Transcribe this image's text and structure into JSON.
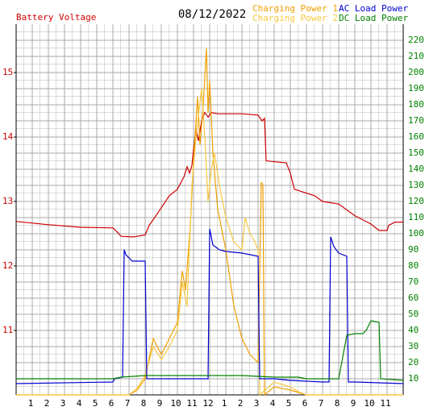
{
  "chart_data": {
    "type": "line",
    "title": "08/12/2022",
    "xlim": [
      0,
      24
    ],
    "xticks": [
      1,
      2,
      3,
      4,
      5,
      6,
      7,
      8,
      9,
      10,
      11,
      12,
      {
        "value": 13,
        "label": "1"
      },
      {
        "value": 14,
        "label": "2"
      },
      {
        "value": 15,
        "label": "3"
      },
      {
        "value": 16,
        "label": "4"
      },
      {
        "value": 17,
        "label": "5"
      },
      {
        "value": 18,
        "label": "6"
      },
      {
        "value": 19,
        "label": "7"
      },
      {
        "value": 20,
        "label": "8"
      },
      {
        "value": 21,
        "label": "9"
      },
      {
        "value": 22,
        "label": "10"
      },
      {
        "value": 23,
        "label": "11"
      }
    ],
    "ylim": [
      10,
      15.75
    ],
    "yticks": [
      11,
      12,
      13,
      14,
      15
    ],
    "ytick_color": "#d00000",
    "y2lim": [
      0,
      230
    ],
    "y2ticks": [
      10,
      20,
      30,
      40,
      50,
      60,
      70,
      80,
      90,
      100,
      110,
      120,
      130,
      140,
      150,
      160,
      170,
      180,
      190,
      200,
      210,
      220
    ],
    "y2tick_color": "#008000",
    "grid": true,
    "series": [
      {
        "name": "Battery Voltage",
        "color": "#d00000",
        "x": [
          0,
          2,
          4,
          6,
          6.25,
          6.5,
          7.25,
          8,
          8.25,
          8.75,
          9.5,
          10,
          10.4,
          10.6,
          10.75,
          10.9,
          11,
          11.15,
          11.3,
          11.5,
          11.7,
          11.9,
          12.1,
          12.5,
          14,
          15,
          15.25,
          15.4,
          15.5,
          16.75,
          17,
          17.25,
          18.5,
          19,
          20,
          21,
          22,
          22.5,
          23,
          23.1,
          23.5,
          24
        ],
        "values": [
          12.69,
          12.64,
          12.6,
          12.59,
          12.53,
          12.46,
          12.45,
          12.48,
          12.63,
          12.81,
          13.09,
          13.19,
          13.38,
          13.54,
          13.44,
          13.56,
          13.81,
          14.13,
          13.94,
          14.25,
          14.38,
          14.31,
          14.38,
          14.36,
          14.36,
          14.34,
          14.25,
          14.29,
          13.63,
          13.6,
          13.44,
          13.19,
          13.09,
          13.0,
          12.96,
          12.78,
          12.65,
          12.55,
          12.55,
          12.63,
          12.68,
          12.68
        ]
      },
      {
        "name": "Charging Power 1",
        "color": "#f0a000",
        "axis": "y2",
        "x": [
          0,
          7,
          7.5,
          8,
          8.5,
          9,
          9.5,
          10,
          10.3,
          10.5,
          10.8,
          11,
          11.25,
          11.4,
          11.6,
          11.8,
          11.9,
          12,
          12.2,
          12.5,
          13,
          13.5,
          14,
          14.5,
          15,
          15.2,
          15.3,
          15.4,
          16,
          17,
          18,
          24
        ],
        "values": [
          0,
          0,
          3,
          10,
          35,
          25,
          35,
          45,
          77,
          65,
          105,
          145,
          185,
          155,
          180,
          215,
          175,
          195,
          150,
          115,
          90,
          55,
          35,
          25,
          20,
          132,
          130,
          0,
          5,
          3,
          0,
          0
        ]
      },
      {
        "name": "Charging Power 2",
        "color": "#f8c840",
        "axis": "y2",
        "x": [
          0,
          7,
          7.5,
          8,
          8.5,
          9,
          9.5,
          10,
          10.3,
          10.6,
          10.9,
          11.2,
          11.5,
          11.7,
          11.9,
          12.1,
          12.3,
          12.6,
          13,
          13.5,
          14,
          14.2,
          14.5,
          14.8,
          15,
          15.1,
          16,
          17,
          17.5,
          18,
          24
        ],
        "values": [
          0,
          0,
          4,
          12,
          30,
          22,
          30,
          40,
          70,
          55,
          130,
          165,
          190,
          160,
          120,
          140,
          150,
          130,
          110,
          95,
          90,
          110,
          100,
          95,
          90,
          0,
          8,
          5,
          2,
          0,
          0
        ]
      },
      {
        "name": "AC Load Power",
        "color": "#0000d0",
        "axis": "y2",
        "x": [
          0,
          6,
          6.1,
          6.6,
          6.7,
          6.8,
          7.2,
          8,
          8.1,
          11.9,
          12,
          12.2,
          12.6,
          13,
          14,
          15,
          15.1,
          16,
          17,
          19,
          19.4,
          19.5,
          19.7,
          20,
          20.5,
          20.6,
          21,
          24
        ],
        "values": [
          7,
          8,
          10,
          11,
          90,
          87,
          83,
          83,
          10,
          10,
          103,
          93,
          90,
          89,
          88,
          86,
          10,
          10,
          9,
          8,
          8,
          98,
          92,
          88,
          86,
          8,
          8,
          7
        ]
      },
      {
        "name": "DC Load Power",
        "color": "#008000",
        "axis": "y2",
        "x": [
          0,
          6,
          6.5,
          8,
          10,
          12,
          14,
          16,
          17.5,
          18,
          20,
          20.5,
          21,
          21.5,
          21.7,
          22,
          22.5,
          22.6,
          24
        ],
        "values": [
          10,
          10,
          11,
          12,
          12,
          12,
          12,
          11,
          11,
          10,
          10,
          37,
          38,
          38,
          40,
          46,
          45,
          10,
          9
        ]
      }
    ]
  }
}
